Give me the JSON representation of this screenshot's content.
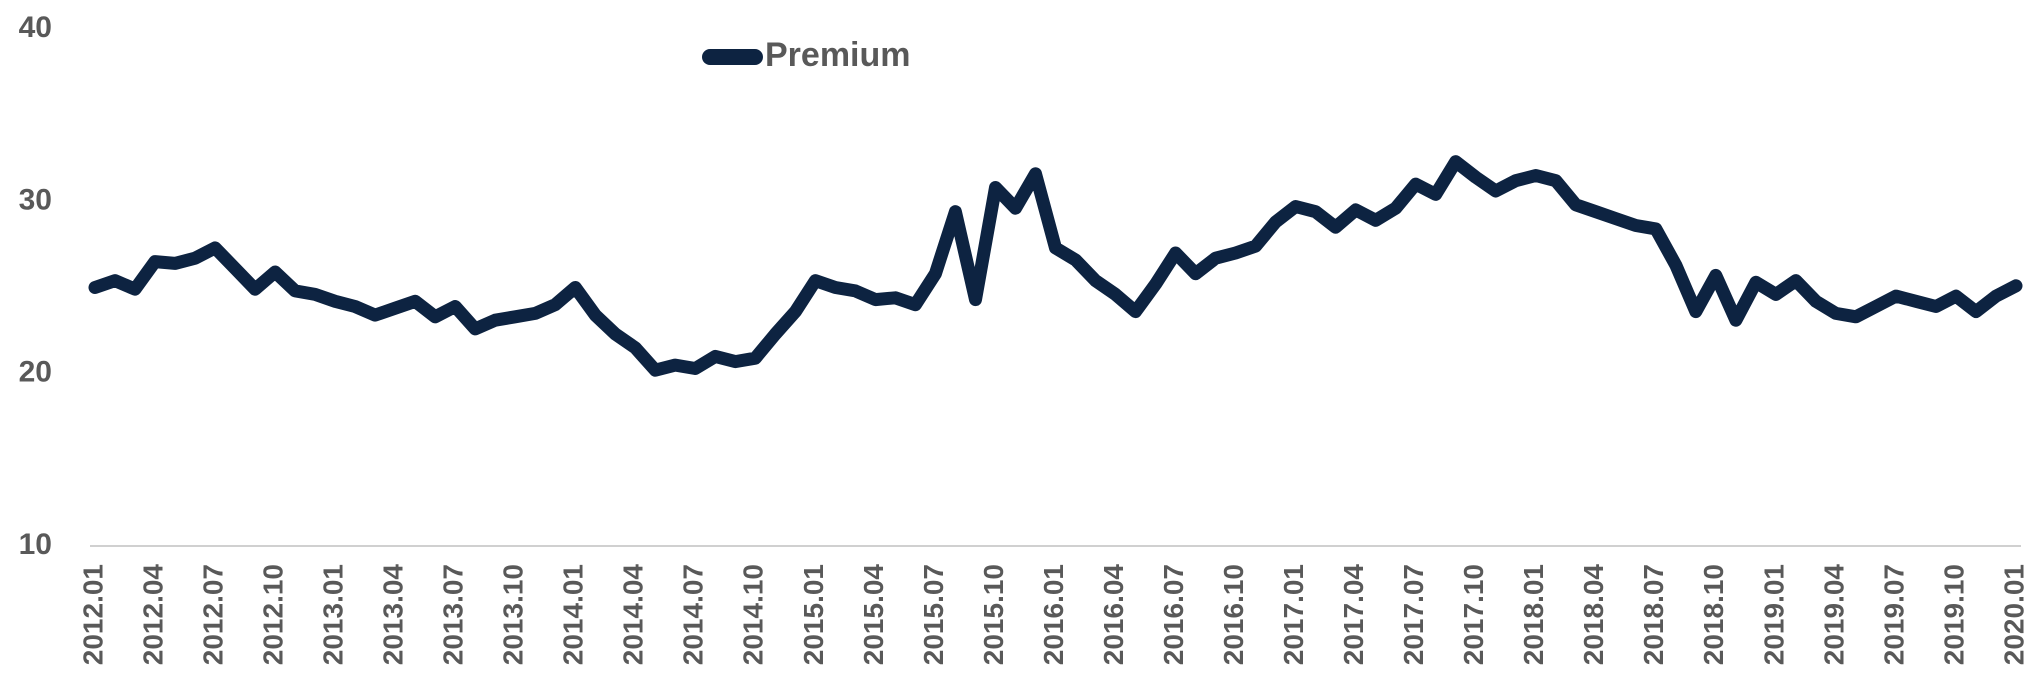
{
  "chart_data": {
    "type": "line",
    "categories": [
      "2012.01",
      null,
      null,
      "2012.04",
      null,
      null,
      "2012.07",
      null,
      null,
      "2012.10",
      null,
      null,
      "2013.01",
      null,
      null,
      "2013.04",
      null,
      null,
      "2013.07",
      null,
      null,
      "2013.10",
      null,
      null,
      "2014.01",
      null,
      null,
      "2014.04",
      null,
      null,
      "2014.07",
      null,
      null,
      "2014.10",
      null,
      null,
      "2015.01",
      null,
      null,
      "2015.04",
      null,
      null,
      "2015.07",
      null,
      null,
      "2015.10",
      null,
      null,
      "2016.01",
      null,
      null,
      "2016.04",
      null,
      null,
      "2016.07",
      null,
      null,
      "2016.10",
      null,
      null,
      "2017.01",
      null,
      null,
      "2017.04",
      null,
      null,
      "2017.07",
      null,
      null,
      "2017.10",
      null,
      null,
      "2018.01",
      null,
      null,
      "2018.04",
      null,
      null,
      "2018.07",
      null,
      null,
      "2018.10",
      null,
      null,
      "2019.01",
      null,
      null,
      "2019.04",
      null,
      null,
      "2019.07",
      null,
      null,
      "2019.10",
      null,
      null,
      "2020.01"
    ],
    "series": [
      {
        "name": "Premium",
        "color": "#0d2341",
        "values": [
          25.0,
          25.4,
          24.9,
          26.5,
          26.4,
          26.7,
          27.3,
          26.1,
          24.9,
          25.9,
          24.8,
          24.6,
          24.2,
          23.9,
          23.4,
          23.8,
          24.2,
          23.3,
          23.9,
          22.6,
          23.1,
          23.3,
          23.5,
          24.0,
          25.0,
          23.4,
          22.3,
          21.5,
          20.2,
          20.5,
          20.3,
          21.0,
          20.7,
          20.9,
          22.3,
          23.6,
          25.4,
          25.0,
          24.8,
          24.3,
          24.4,
          24.0,
          25.8,
          29.4,
          24.3,
          30.8,
          29.6,
          31.6,
          27.3,
          26.6,
          25.4,
          24.6,
          23.6,
          25.2,
          27.0,
          25.8,
          26.7,
          27.0,
          27.4,
          28.8,
          29.7,
          29.4,
          28.5,
          29.5,
          28.9,
          29.6,
          31.0,
          30.4,
          32.3,
          31.4,
          30.6,
          31.2,
          31.5,
          31.2,
          29.8,
          29.4,
          29.0,
          28.6,
          28.4,
          26.3,
          23.6,
          25.7,
          23.1,
          25.3,
          24.6,
          25.4,
          24.2,
          23.5,
          23.3,
          23.9,
          24.5,
          24.2,
          23.9,
          24.5,
          23.6,
          24.5,
          25.1
        ]
      }
    ],
    "ylim": [
      10,
      40
    ],
    "yticks": [
      10,
      20,
      30,
      40
    ],
    "grid": false,
    "legend": "top"
  }
}
